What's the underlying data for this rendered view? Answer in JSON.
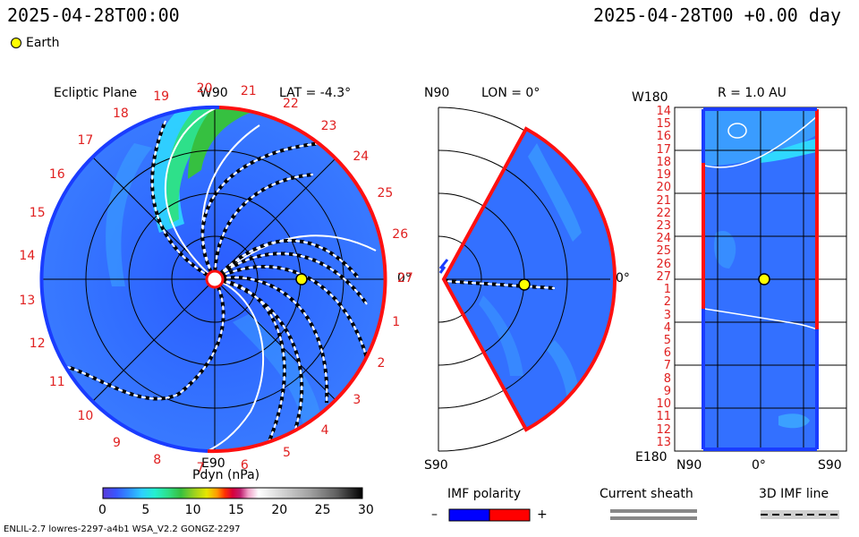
{
  "header": {
    "left_time": "2025-04-28T00:00",
    "right_time": "2025-04-28T00 +0.00 day"
  },
  "legend_earth": {
    "label": "Earth",
    "color": "#ffff00"
  },
  "panels": {
    "ecliptic": {
      "title": "Ecliptic Plane",
      "lat": "LAT = -4.3°",
      "top_label": "W90",
      "bottom_label": "E90",
      "right_label": "0°",
      "carrington_labels": [
        "1",
        "2",
        "3",
        "4",
        "5",
        "6",
        "7",
        "8",
        "9",
        "10",
        "11",
        "12",
        "13",
        "14",
        "15",
        "16",
        "17",
        "18",
        "19",
        "20",
        "21",
        "22",
        "23",
        "24",
        "25",
        "26",
        "27"
      ]
    },
    "meridional": {
      "title": "LON = 0°",
      "top_label": "N90",
      "bottom_label": "S90",
      "right_label": "0°"
    },
    "radial": {
      "title": "R = 1.0 AU",
      "top_left": "W180",
      "bottom_left": "E180",
      "bottom_labels": [
        "N90",
        "0°",
        "S90"
      ],
      "row_labels": [
        "14",
        "15",
        "16",
        "17",
        "18",
        "19",
        "20",
        "21",
        "22",
        "23",
        "24",
        "25",
        "26",
        "27",
        "1",
        "2",
        "3",
        "4",
        "5",
        "6",
        "7",
        "8",
        "9",
        "10",
        "11",
        "12",
        "13"
      ]
    }
  },
  "colorbar": {
    "title": "Pdyn (nPa)",
    "ticks": [
      "0",
      "5",
      "10",
      "15",
      "20",
      "25",
      "30"
    ],
    "colors": [
      "#5a3bd8",
      "#3a55ff",
      "#2f8fff",
      "#2ecfff",
      "#23f0d0",
      "#2ee08a",
      "#36c040",
      "#98d020",
      "#e6e600",
      "#ff9a00",
      "#ff3000",
      "#d8003a",
      "#c02070",
      "#f0a0c8",
      "#ffffff",
      "#d8d8d8",
      "#b0b0b0",
      "#888888",
      "#606060",
      "#383838",
      "#000000"
    ]
  },
  "legends": {
    "imf": {
      "title": "IMF polarity",
      "minus": "–",
      "plus": "+",
      "neg_color": "#0000ff",
      "pos_color": "#ff0000"
    },
    "sheath": {
      "title": "Current sheath"
    },
    "imf3d": {
      "title": "3D IMF line"
    }
  },
  "footer": {
    "left": "ENLIL-2.7 lowres-2297-a4b1 WSA_V2.2 GONGZ-2297"
  }
}
